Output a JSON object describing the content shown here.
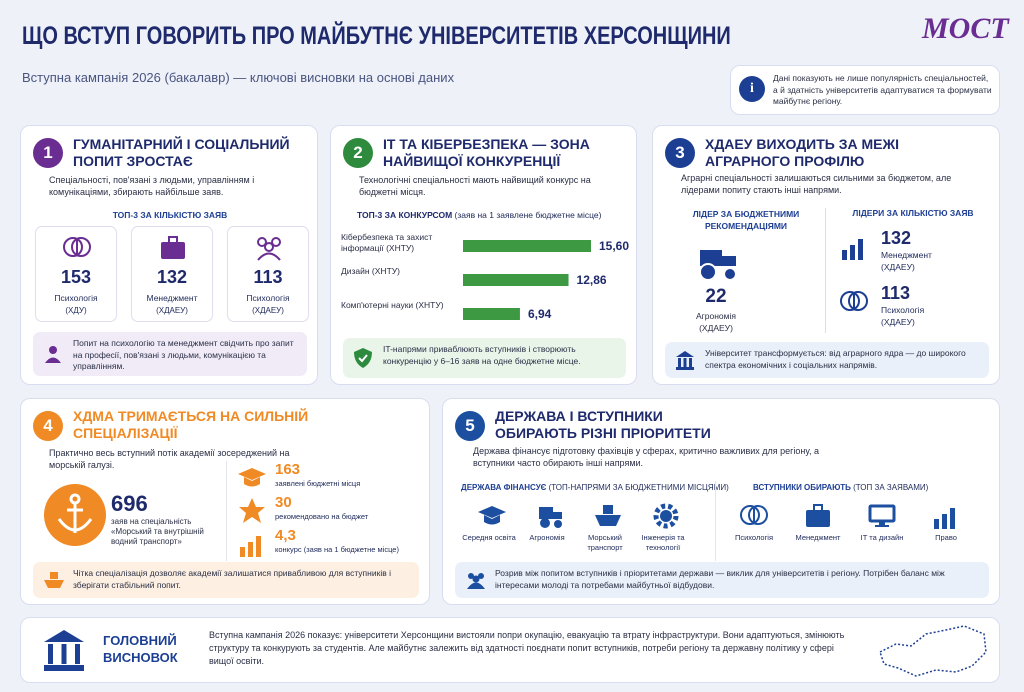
{
  "header": {
    "title": "ЩО ВСТУП ГОВОРИТЬ ПРО МАЙБУТНЄ УНІВЕРСИТЕТІВ ХЕРСОНЩИНИ",
    "subtitle": "Вступна кампанія 2026 (бакалавр) — ключові висновки на основі даних",
    "logo": "МОСТ",
    "note": "Дані показують не лише популярність спеціальностей, а й здатність університетів адаптуватися та формувати майбутнє регіону."
  },
  "card1": {
    "number": 1,
    "title": "ГУМАНІТАРНИЙ І СОЦІАЛЬНИЙ ПОПИТ ЗРОСТАЄ",
    "text": "Спеціальності, пов'язані з людьми, управлінням і комунікаціями, збирають найбільше заяв.",
    "subheading": "ТОП-3 ЗА КІЛЬКІСТЮ ЗАЯВ",
    "items": [
      {
        "value": 153,
        "name": "Психологія",
        "org": "(ХДУ)"
      },
      {
        "value": 132,
        "name": "Менеджмент",
        "org": "(ХДАЕУ)"
      },
      {
        "value": 113,
        "name": "Психологія",
        "org": "(ХДАЕУ)"
      }
    ],
    "note": "Попит на психологію та менеджмент свідчить про запит на професії, пов'язані з людьми, комунікацією та управлінням."
  },
  "card2": {
    "number": 2,
    "title": "IT ТА КІБЕРБЕЗПЕКА — ЗОНА НАЙВИЩОЇ КОНКУРЕНЦІЇ",
    "text": "Технологічні спеціальності мають найвищий конкурс на бюджетні місця.",
    "subheading": "ТОП-3 ЗА КОНКУРСОМ",
    "subheading_note": "(заяв на 1 заявлене бюджетне місце)",
    "chart": {
      "type": "bar",
      "categories": [
        "Кібербезпека та захист інформації (ХНТУ)",
        "Дизайн (ХНТУ)",
        "Комп'ютерні науки (ХНТУ)"
      ],
      "values": [
        15.6,
        12.86,
        6.94
      ],
      "value_labels": [
        "15,60",
        "12,86",
        "6,94"
      ],
      "color": "#3d9a43"
    },
    "note": "IT-напрями приваблюють вступників і створюють конкуренцію у 6–16 заяв на одне бюджетне місце."
  },
  "card3": {
    "number": 3,
    "title": "ХДАЕУ ВИХОДИТЬ ЗА МЕЖІ АГРАРНОГО ПРОФІЛЮ",
    "text": "Аграрні спеціальності залишаються сильними за бюджетом, але лідерами попиту стають інші напрями.",
    "left": {
      "heading": "ЛІДЕР ЗА БЮДЖЕТНИМИ РЕКОМЕНДАЦІЯМИ",
      "value": 22,
      "name": "Агрономія",
      "org": "(ХДАЕУ)"
    },
    "right": {
      "heading": "ЛІДЕРИ ЗА КІЛЬКІСТЮ ЗАЯВ",
      "items": [
        {
          "value": 132,
          "name": "Менеджмент",
          "org": "(ХДАЕУ)"
        },
        {
          "value": 113,
          "name": "Психологія",
          "org": "(ХДАЕУ)"
        }
      ]
    },
    "note": "Університет трансформується: від аграрного ядра — до широкого спектра економічних і соціальних напрямів."
  },
  "card4": {
    "number": 4,
    "title": "ХДМА ТРИМАЄТЬСЯ НА СИЛЬНІЙ СПЕЦІАЛІЗАЦІЇ",
    "text": "Практично весь вступний потік академії зосереджений на морській галузі.",
    "main": {
      "value": 696,
      "text": "заяв на спеціальність «Морський та внутрішній водний транспорт»"
    },
    "stats": [
      {
        "value": 163,
        "text": "заявлені бюджетні місця"
      },
      {
        "value": 30,
        "text": "рекомендовано на бюджет"
      },
      {
        "value": "4,3",
        "text": "конкурс (заяв на 1 бюджетне місце)"
      }
    ],
    "note": "Чітка спеціалізація дозволяє академії залишатися привабливою для вступників і зберігати стабільний попит."
  },
  "card5": {
    "number": 5,
    "title": "ДЕРЖАВА І ВСТУПНИКИ ОБИРАЮТЬ РІЗНІ ПРІОРИТЕТИ",
    "text": "Держава фінансує підготовку фахівців у сферах, критично важливих для регіону, а вступники часто обирають інші напрями.",
    "state": {
      "heading": "ДЕРЖАВА ФІНАНСУЄ",
      "heading_note": "(ТОП-НАПРЯМИ ЗА БЮДЖЕТНИМИ МІСЦЯМИ)",
      "items": [
        "Середня освіта",
        "Агрономія",
        "Морський транспорт",
        "Інженерія та технології"
      ]
    },
    "applicants": {
      "heading": "ВСТУПНИКИ ОБИРАЮТЬ",
      "heading_note": "(ТОП ЗА ЗАЯВАМИ)",
      "items": [
        "Психологія",
        "Менеджмент",
        "IT та дизайн",
        "Право"
      ]
    },
    "note": "Розрив між попитом вступників і пріоритетами держави — виклик для університетів і регіону. Потрібен баланс між інтересами молоді та потребами майбутньої відбудови."
  },
  "conclusion": {
    "heading": "ГОЛОВНИЙ ВИСНОВОК",
    "text": "Вступна кампанія 2026 показує: університети Херсонщини вистояли попри окупацію, евакуацію та втрату інфраструктури. Вони адаптуються, змінюють структуру та конкурують за студентів. Але майбутнє залежить від здатності поєднати попит вступників, потреби регіону та державну політику у сфері вищої освіти."
  }
}
